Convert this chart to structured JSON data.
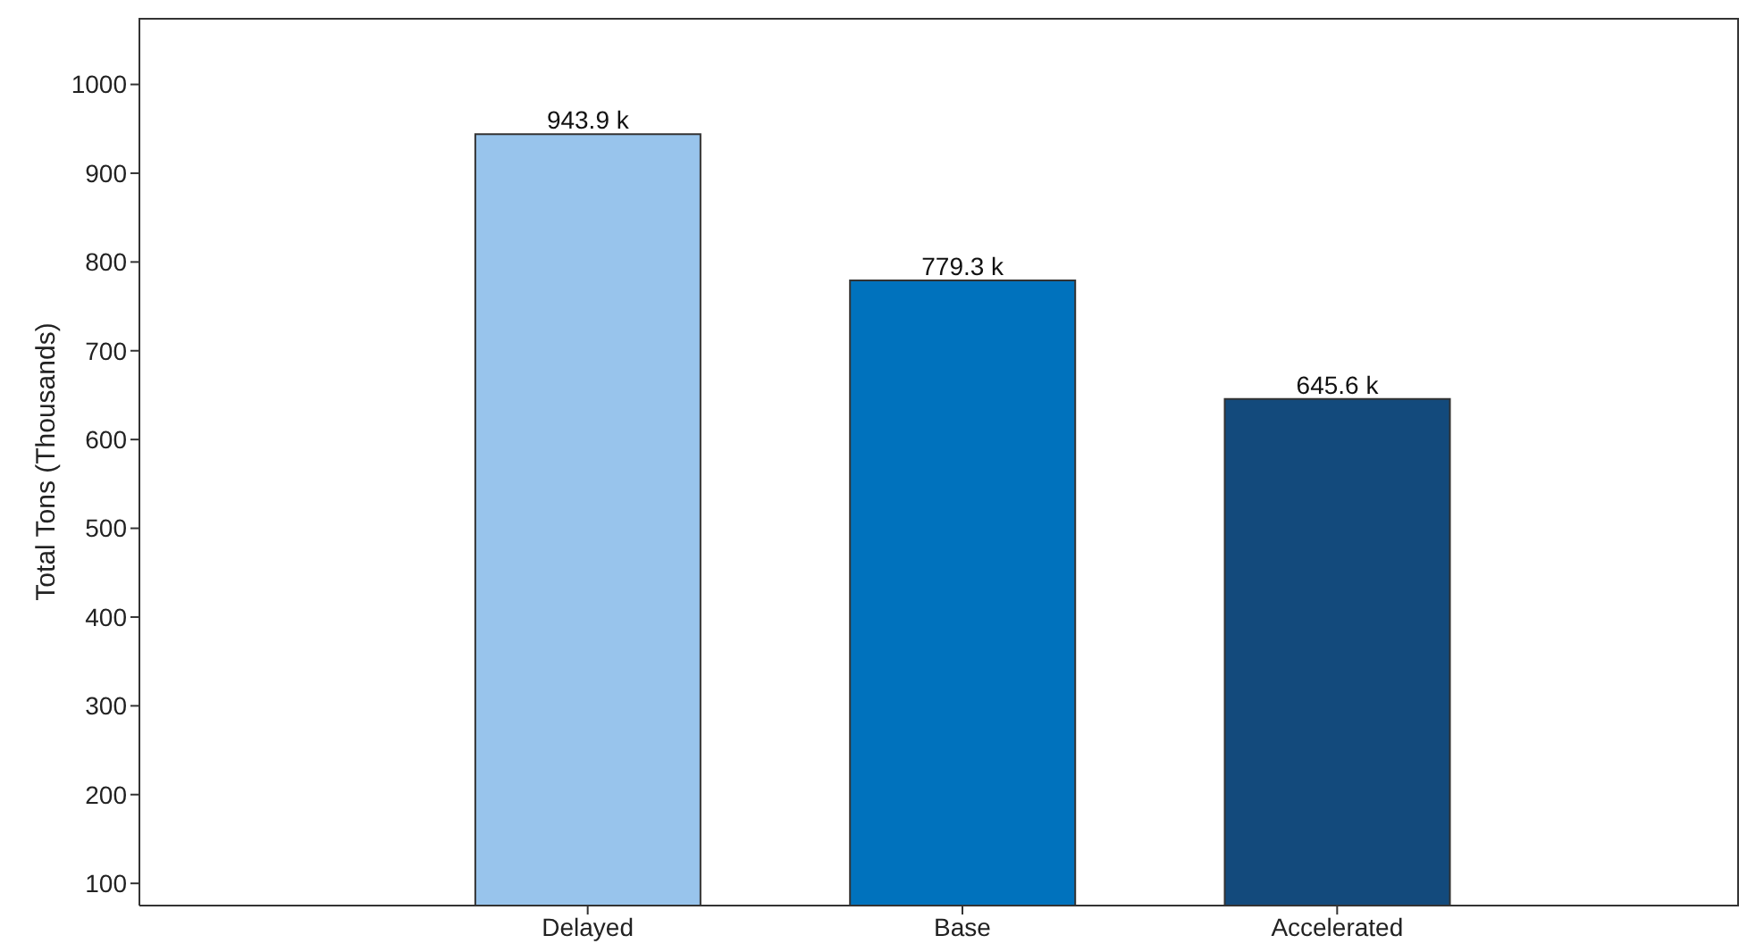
{
  "chart_data": {
    "type": "bar",
    "ylabel": "Total Tons (Thousands)",
    "categories": [
      "Delayed",
      "Base",
      "Accelerated"
    ],
    "values": [
      943.9,
      779.3,
      645.6
    ],
    "colors": [
      "#98c4ec",
      "#0072bd",
      "#134a7c"
    ],
    "value_labels": [
      "943.9 k",
      "779.3 k",
      "645.6 k"
    ],
    "ylim": [
      75,
      1075
    ],
    "yticks": [
      100,
      200,
      300,
      400,
      500,
      600,
      700,
      800,
      900,
      1000
    ]
  }
}
